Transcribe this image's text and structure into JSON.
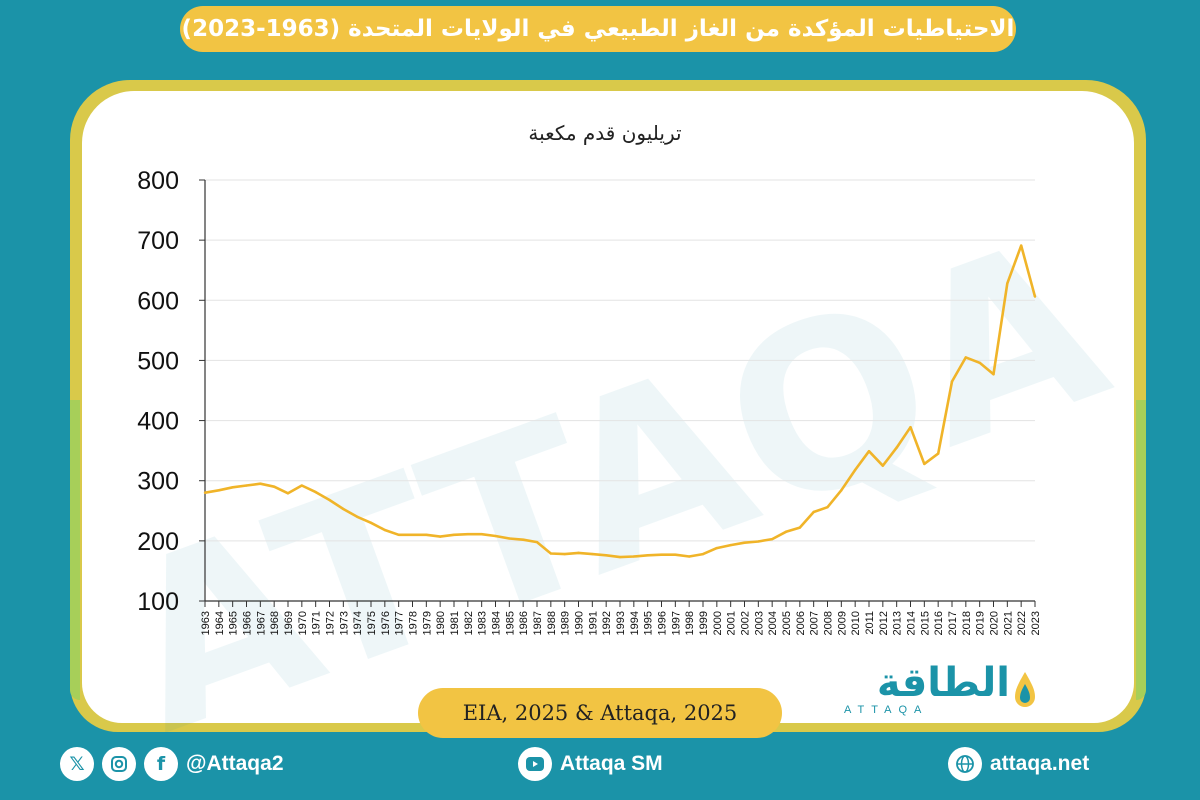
{
  "title": "الاحتياطيات المؤكدة من الغاز الطبيعي في الولايات المتحدة (1963-2023)",
  "source": "EIA, 2025 & Attaqa, 2025",
  "logo": {
    "arabic": "الطاقة",
    "latin": "ATTAQA"
  },
  "footer": {
    "social_handle": "@Attaqa2",
    "youtube": "Attaqa SM",
    "website": "attaqa.net"
  },
  "icons": [
    "x-icon",
    "instagram-icon",
    "facebook-icon",
    "youtube-icon",
    "globe-icon",
    "drop-logo-icon"
  ],
  "colors": {
    "background": "#1b93a8",
    "accent": "#f2c443",
    "line": "#f0b429",
    "frame": "#d9c94a",
    "band": "#a7cf59"
  },
  "chart_data": {
    "type": "line",
    "unit_label": "تريليون قدم مكعبة",
    "ylim": [
      100,
      800
    ],
    "yticks": [
      100,
      200,
      300,
      400,
      500,
      600,
      700,
      800
    ],
    "grid": true,
    "x": [
      1963,
      1964,
      1965,
      1966,
      1967,
      1968,
      1969,
      1970,
      1971,
      1972,
      1973,
      1974,
      1975,
      1976,
      1977,
      1978,
      1979,
      1980,
      1981,
      1982,
      1983,
      1984,
      1985,
      1986,
      1987,
      1988,
      1989,
      1990,
      1991,
      1992,
      1993,
      1994,
      1995,
      1996,
      1997,
      1998,
      1999,
      2000,
      2001,
      2002,
      2003,
      2004,
      2005,
      2006,
      2007,
      2008,
      2009,
      2010,
      2011,
      2012,
      2013,
      2014,
      2015,
      2016,
      2017,
      2018,
      2019,
      2020,
      2021,
      2022,
      2023
    ],
    "values": [
      280,
      284,
      289,
      292,
      295,
      290,
      279,
      292,
      281,
      268,
      253,
      240,
      230,
      218,
      210,
      210,
      210,
      207,
      210,
      211,
      211,
      208,
      204,
      202,
      198,
      179,
      178,
      180,
      178,
      176,
      173,
      174,
      176,
      177,
      177,
      174,
      178,
      188,
      193,
      197,
      199,
      203,
      215,
      222,
      248,
      256,
      284,
      318,
      349,
      325,
      355,
      389,
      328,
      345,
      465,
      505,
      496,
      477,
      628,
      691,
      606
    ]
  }
}
